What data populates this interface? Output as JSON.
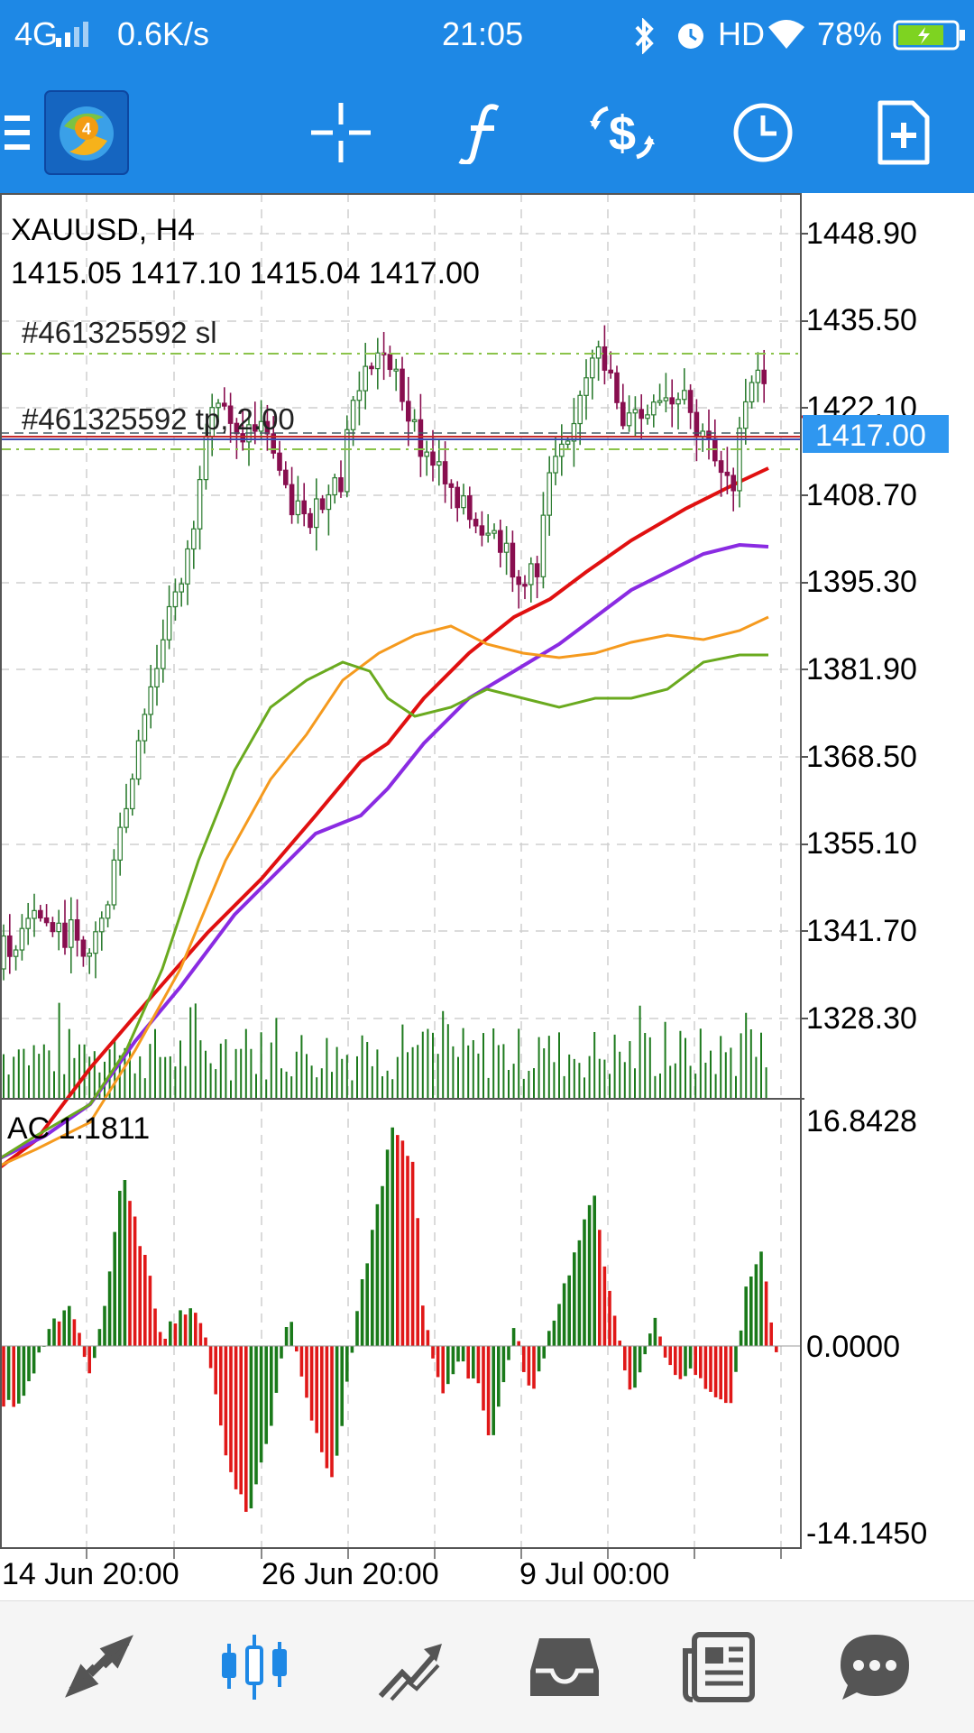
{
  "status_bar": {
    "network": "4G",
    "speed": "0.6K/s",
    "time": "21:05",
    "hd": "HD",
    "battery": "78%"
  },
  "toolbar": {
    "icons": [
      "menu-icon",
      "metatrader-logo",
      "crosshair-icon",
      "indicators-icon",
      "trade-icon",
      "timeframe-icon",
      "new-order-icon"
    ]
  },
  "chart": {
    "symbol_line": "XAUUSD, H4",
    "ohlc_line": "1415.05 1417.10 1415.04 1417.00",
    "sl_label": "#461325592 sl",
    "tp_label": "#461325592 tp, 2.00",
    "price_axis": [
      "1448.90",
      "1435.50",
      "1422.10",
      "1408.70",
      "1395.30",
      "1381.90",
      "1368.50",
      "1355.10",
      "1341.70",
      "1328.30"
    ],
    "current_price": "1417.00",
    "ac_label": "AC 1.1811",
    "ac_axis": [
      "16.8428",
      "0.0000",
      "-14.1450"
    ],
    "time_axis": [
      "14 Jun 20:00",
      "26 Jun 20:00",
      "9 Jul 00:00"
    ],
    "colors": {
      "bull_candle": "#2e7d32",
      "bear_candle": "#880e4f",
      "ma_green": "#6aaa1f",
      "ma_orange": "#f59a1e",
      "ma_purple": "#8a2be2",
      "ma_red": "#e01010",
      "ac_up": "#1a7a1a",
      "ac_down": "#e01818",
      "price_tag_bg": "#2f97f0"
    }
  },
  "bottom_nav": {
    "items": [
      "quotes-icon",
      "chart-icon",
      "trade-icon",
      "history-icon",
      "news-icon",
      "chat-icon"
    ],
    "active": "chart-icon",
    "active_color": "#1e88e5"
  }
}
